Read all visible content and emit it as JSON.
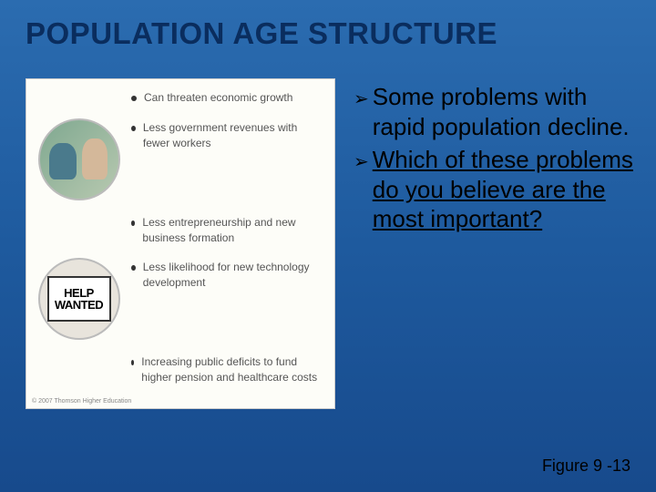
{
  "slide": {
    "title": "POPULATION AGE STRUCTURE",
    "figure_label": "Figure 9 -13",
    "background_gradient": [
      "#2b6cb0",
      "#1e5a9e",
      "#174a8c"
    ],
    "title_color": "#0a2d5e",
    "title_fontsize": 33
  },
  "left_panel": {
    "background_color": "#fdfdf8",
    "bullets": [
      {
        "text": "Can threaten economic growth",
        "has_image": false
      },
      {
        "text": "Less government revenues with fewer workers",
        "has_image": true,
        "image": "nurse-patient"
      },
      {
        "text": "Less entrepreneurship and new business formation",
        "has_image": false
      },
      {
        "text": "Less likelihood for new technology development",
        "has_image": true,
        "image": "help-wanted"
      },
      {
        "text": "Increasing public deficits to fund higher pension and healthcare costs",
        "has_image": false
      }
    ],
    "help_sign": {
      "line1": "HELP",
      "line2": "WANTED"
    },
    "copyright": "© 2007 Thomson Higher Education",
    "bullet_fontsize": 12,
    "bullet_color": "#555"
  },
  "right_panel": {
    "items": [
      {
        "text": "Some problems with rapid population decline.",
        "underline": false
      },
      {
        "text": "Which of these problems do you believe are the most important?",
        "underline": true
      }
    ],
    "text_color": "#000000",
    "text_fontsize": 26,
    "chevron_glyph": "➢"
  }
}
